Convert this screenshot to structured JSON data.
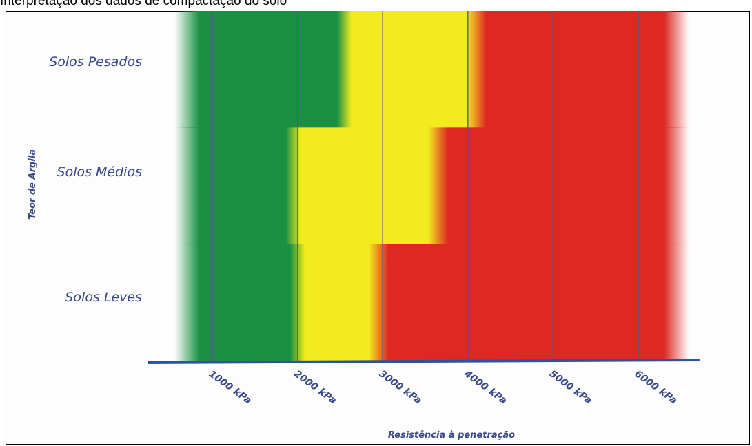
{
  "page_title": "Interpretação dos dados de compactação do solo",
  "chart_data": {
    "type": "heatmap",
    "title": "",
    "xlabel": "Resistência à penetração",
    "ylabel": "Teor de Argila",
    "x_tick_labels": [
      "1000 kPa",
      "2000 kPa",
      "3000 kPa",
      "4000 kPa",
      "5000 kPa",
      "6000 kPa"
    ],
    "x_tick_values": [
      1000,
      2000,
      3000,
      4000,
      5000,
      6000
    ],
    "xlim": [
      400,
      6600
    ],
    "categories": [
      "Solos Pesados",
      "Solos Médios",
      "Solos Leves"
    ],
    "series": [
      {
        "category": "Solos Pesados",
        "green_end": 2550,
        "yellow_end": 4100,
        "red_end": 6450
      },
      {
        "category": "Solos Médios",
        "green_end": 1950,
        "yellow_end": 3650,
        "red_end": 6450
      },
      {
        "category": "Solos Leves",
        "green_end": 2000,
        "yellow_end": 2950,
        "red_end": 6450
      }
    ],
    "green_start": 700,
    "colors": {
      "green": "#1a9142",
      "yellow": "#f2ec1f",
      "red": "#de2824",
      "axis": "#2a53a0",
      "label": "#3a4a8c",
      "grid": "#4a5a8a"
    },
    "grid": true
  }
}
